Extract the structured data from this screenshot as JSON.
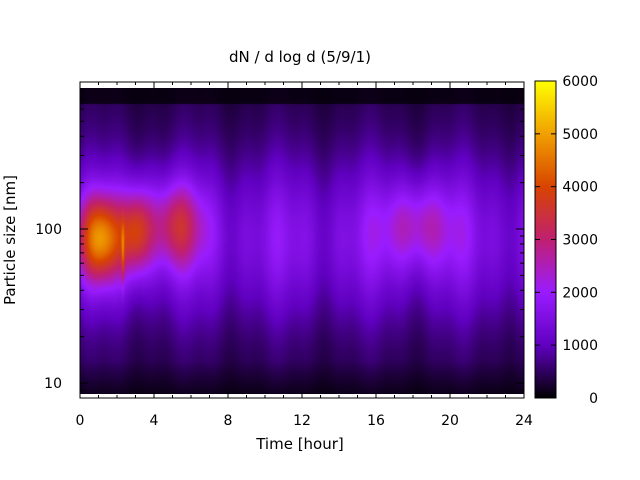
{
  "chart_data": {
    "type": "heatmap",
    "title": "dN / d log d (5/9/1)",
    "xlabel": "Time [hour]",
    "ylabel": "Particle size [nm]",
    "xlim": [
      0,
      24
    ],
    "ylim": [
      8,
      900
    ],
    "yscale": "log",
    "xticks": [
      0,
      4,
      8,
      12,
      16,
      20,
      24
    ],
    "xtick_labels": [
      "0",
      "4",
      "8",
      "12",
      "16",
      "20",
      "24"
    ],
    "yticks": [
      10,
      100
    ],
    "ytick_labels": [
      "10",
      "100"
    ],
    "colorbar": {
      "min": 0,
      "max": 6000,
      "ticks": [
        0,
        1000,
        2000,
        3000,
        4000,
        5000,
        6000
      ],
      "tick_labels": [
        "0",
        "1000",
        "2000",
        "3000",
        "4000",
        "5000",
        "6000"
      ],
      "colors": [
        "#000000",
        "#6000c0",
        "#9a1cff",
        "#c02070",
        "#d84400",
        "#f0a000",
        "#ffff00"
      ]
    },
    "features": [
      {
        "t_start": 0,
        "t_end": 2.2,
        "d_center": 90,
        "peak": 4600
      },
      {
        "t_start": 2.3,
        "t_end": 3.8,
        "d_center": 100,
        "peak": 3600
      },
      {
        "t_start": 3.8,
        "t_end": 6.5,
        "d_center": 110,
        "peak": 3200
      },
      {
        "t_start": 16.5,
        "t_end": 20,
        "d_center": 110,
        "peak": 2600
      }
    ],
    "grid": false,
    "legend": "colorbar-right"
  }
}
